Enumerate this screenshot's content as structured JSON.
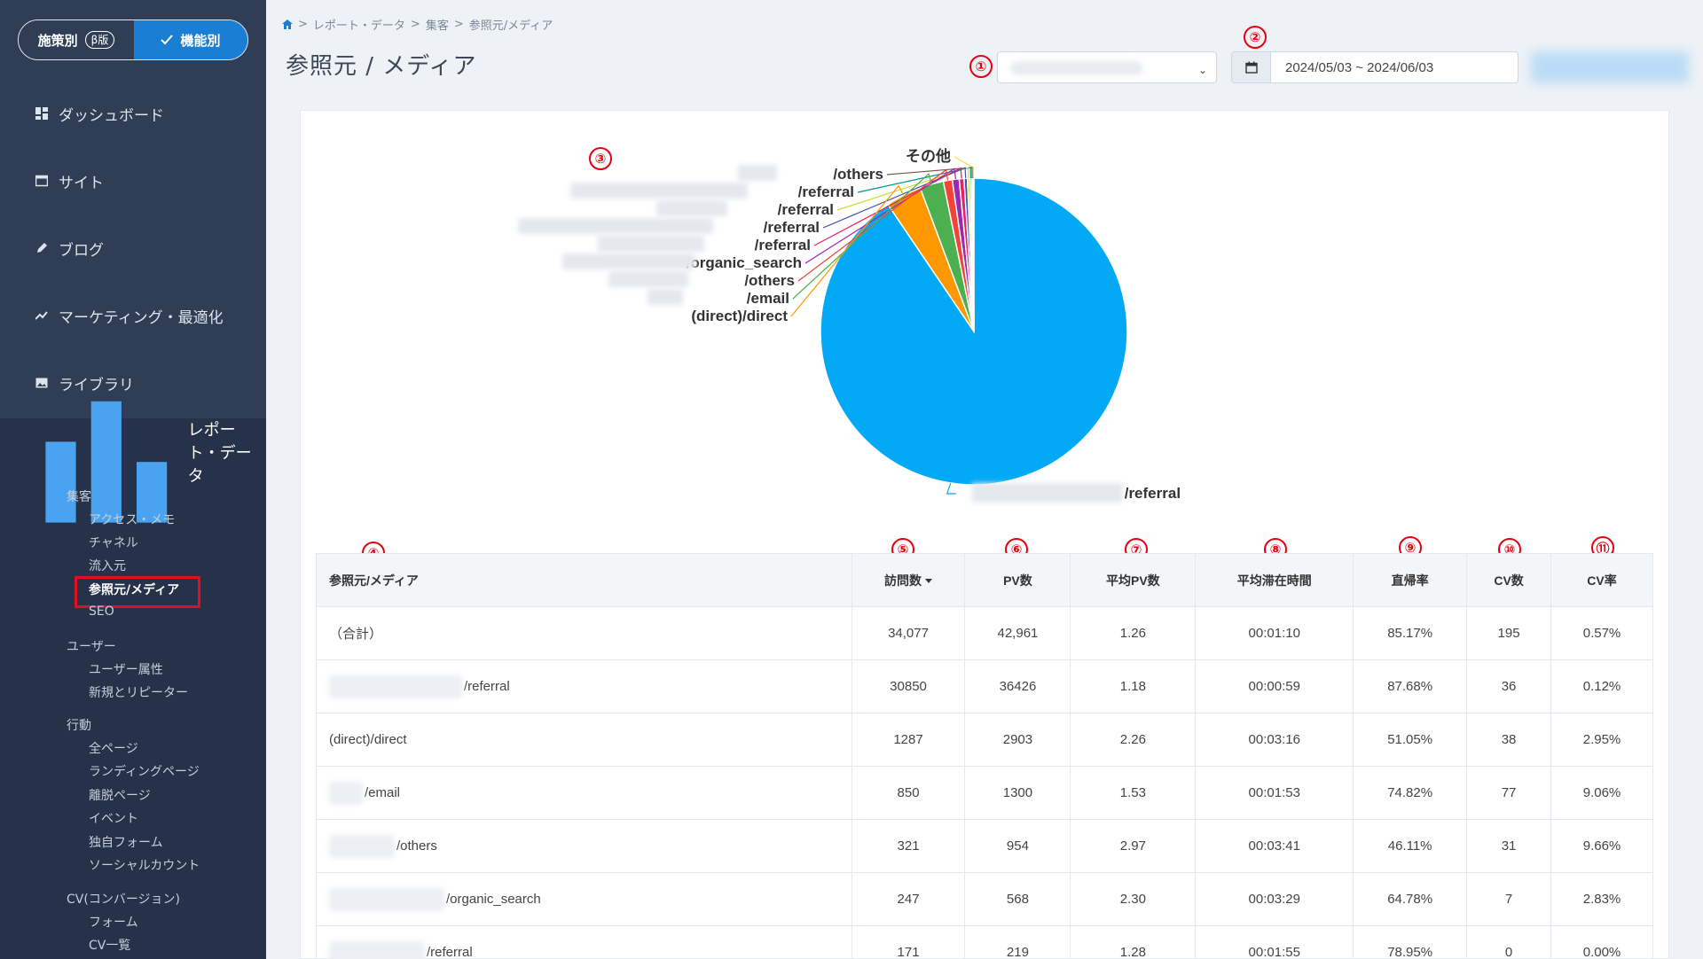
{
  "sidebar": {
    "toggle": {
      "left_label": "施策別",
      "beta_label": "β版",
      "right_label": "機能別"
    },
    "nav": [
      {
        "label": "ダッシュボード",
        "icon": "dashboard-icon"
      },
      {
        "label": "サイト",
        "icon": "window-icon"
      },
      {
        "label": "ブログ",
        "icon": "pencil-icon"
      },
      {
        "label": "マーケティング・最適化",
        "icon": "trend-icon"
      },
      {
        "label": "ライブラリ",
        "icon": "image-icon"
      }
    ],
    "report": {
      "label": "レポート・データ",
      "icon": "bar-chart-icon"
    },
    "groups": {
      "acquisition": "集客",
      "access_memo": "アクセス・メモ",
      "channel": "チャネル",
      "inflow": "流入元",
      "source_medium": "参照元/メディア",
      "seo": "SEO",
      "user": "ユーザー",
      "user_attr": "ユーザー属性",
      "new_repeat": "新規とリピーター",
      "behavior": "行動",
      "all_pages": "全ページ",
      "landing": "ランディングページ",
      "exit": "離脱ページ",
      "event": "イベント",
      "form_custom": "独自フォーム",
      "social": "ソーシャルカウント",
      "cv": "CV(コンバージョン)",
      "form": "フォーム",
      "cv_list": "CV一覧"
    }
  },
  "header": {
    "breadcrumb": [
      "レポート・データ",
      "集客",
      "参照元/メディア"
    ],
    "separator": ">",
    "title": "参照元 / メディア",
    "date_range": "2024/05/03 ~ 2024/06/03"
  },
  "markers": [
    "①",
    "②",
    "③",
    "④",
    "⑤",
    "⑥",
    "⑦",
    "⑧",
    "⑨",
    "⑩",
    "⑪"
  ],
  "chart_data": {
    "type": "pie",
    "labels": [
      "/referral",
      "(direct)/direct",
      "/email",
      "/others",
      "/organic_search",
      "/referral",
      "/referral",
      "/referral",
      "/referral",
      "/others",
      "その他"
    ],
    "values": [
      30850,
      1287,
      850,
      321,
      247,
      171,
      120,
      90,
      60,
      40,
      41
    ],
    "colors": [
      "#03a9f4",
      "#ff9800",
      "#4caf50",
      "#f44336",
      "#9c27b0",
      "#e91e63",
      "#3f51b5",
      "#cddc39",
      "#009688",
      "#795548",
      "#ffd54f"
    ]
  },
  "table": {
    "headers": [
      "参照元/メディア",
      "訪問数",
      "PV数",
      "平均PV数",
      "平均滞在時間",
      "直帰率",
      "CV数",
      "CV率"
    ],
    "rows": [
      {
        "name": "（合計）",
        "masked": false,
        "visits": "34,077",
        "pv": "42,961",
        "avg_pv": "1.26",
        "avg_time": "00:01:10",
        "bounce": "85.17%",
        "cv": "195",
        "cv_rate": "0.57%"
      },
      {
        "name": "/referral",
        "masked": true,
        "visits": "30850",
        "pv": "36426",
        "avg_pv": "1.18",
        "avg_time": "00:00:59",
        "bounce": "87.68%",
        "cv": "36",
        "cv_rate": "0.12%"
      },
      {
        "name": "(direct)/direct",
        "masked": false,
        "visits": "1287",
        "pv": "2903",
        "avg_pv": "2.26",
        "avg_time": "00:03:16",
        "bounce": "51.05%",
        "cv": "38",
        "cv_rate": "2.95%"
      },
      {
        "name": "/email",
        "masked": true,
        "visits": "850",
        "pv": "1300",
        "avg_pv": "1.53",
        "avg_time": "00:01:53",
        "bounce": "74.82%",
        "cv": "77",
        "cv_rate": "9.06%"
      },
      {
        "name": "/others",
        "masked": true,
        "visits": "321",
        "pv": "954",
        "avg_pv": "2.97",
        "avg_time": "00:03:41",
        "bounce": "46.11%",
        "cv": "31",
        "cv_rate": "9.66%"
      },
      {
        "name": "/organic_search",
        "masked": true,
        "visits": "247",
        "pv": "568",
        "avg_pv": "2.30",
        "avg_time": "00:03:29",
        "bounce": "64.78%",
        "cv": "7",
        "cv_rate": "2.83%"
      },
      {
        "name": "/referral",
        "masked": true,
        "visits": "171",
        "pv": "219",
        "avg_pv": "1.28",
        "avg_time": "00:01:55",
        "bounce": "78.95%",
        "cv": "0",
        "cv_rate": "0.00%"
      }
    ]
  }
}
